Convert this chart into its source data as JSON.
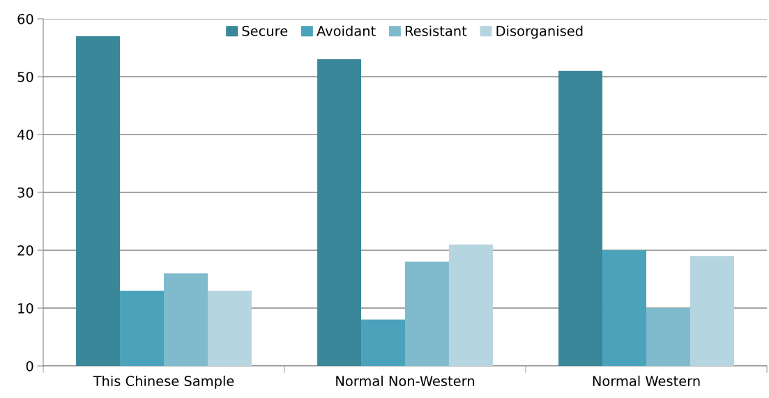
{
  "chart_data": {
    "type": "bar",
    "categories": [
      "This Chinese Sample",
      "Normal Non-Western",
      "Normal Western"
    ],
    "series": [
      {
        "name": "Secure",
        "color": "#3a8799",
        "values": [
          57,
          53,
          51
        ]
      },
      {
        "name": "Avoidant",
        "color": "#4aa3bb",
        "values": [
          13,
          8,
          20
        ]
      },
      {
        "name": "Resistant",
        "color": "#7fbacd",
        "values": [
          16,
          18,
          10
        ]
      },
      {
        "name": "Disorganised",
        "color": "#b5d5e0",
        "values": [
          13,
          21,
          19
        ]
      }
    ],
    "ylim": [
      0,
      60
    ],
    "yticks": [
      0,
      10,
      20,
      30,
      40,
      50,
      60
    ],
    "grid": "y",
    "legend": "top"
  }
}
